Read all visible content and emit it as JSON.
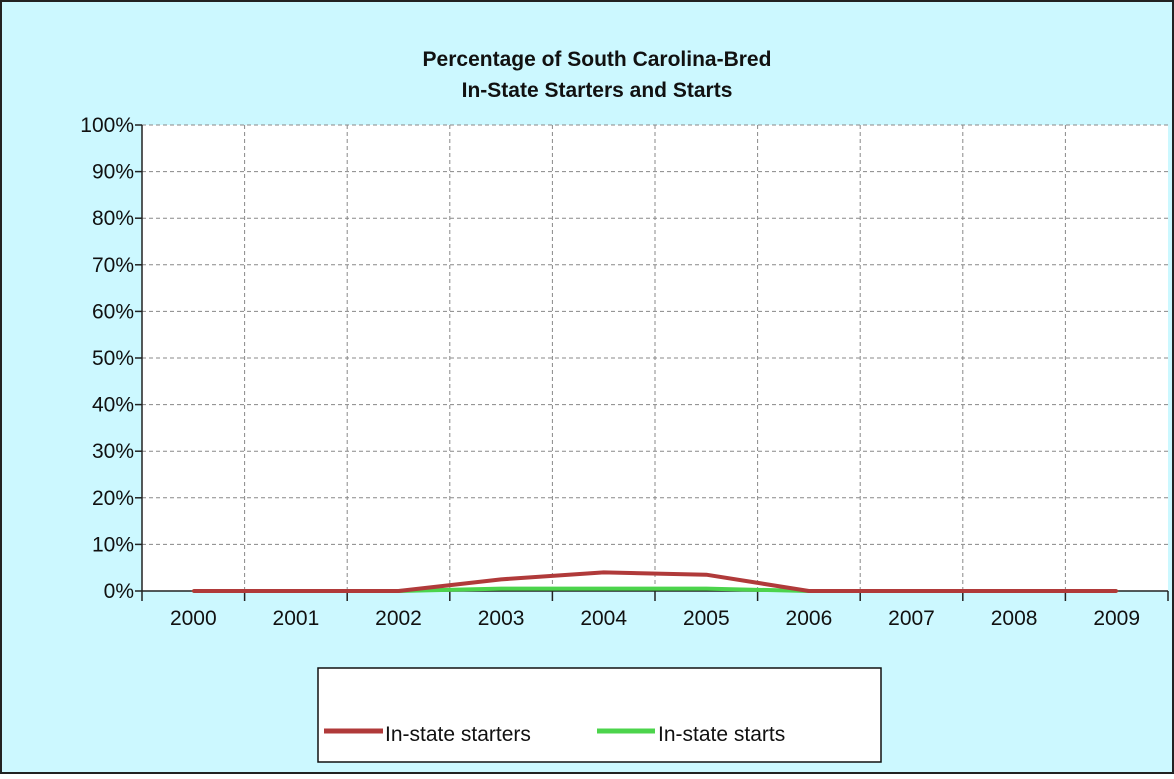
{
  "chart_data": {
    "type": "line",
    "title_lines": [
      "Percentage of South Carolina-Bred",
      "In-State Starters and Starts"
    ],
    "categories": [
      "2000",
      "2001",
      "2002",
      "2003",
      "2004",
      "2005",
      "2006",
      "2007",
      "2008",
      "2009"
    ],
    "y_ticks": [
      "0%",
      "10%",
      "20%",
      "30%",
      "40%",
      "50%",
      "60%",
      "70%",
      "80%",
      "90%",
      "100%"
    ],
    "ylim": [
      0,
      100
    ],
    "grid": true,
    "legend_position": "bottom",
    "series": [
      {
        "name": "In-state starters",
        "color": "#b03a3a",
        "values": [
          0,
          0,
          0,
          2.5,
          4,
          3.5,
          0,
          0,
          0,
          0
        ]
      },
      {
        "name": "In-state starts",
        "color": "#4cd44c",
        "values": [
          0,
          0,
          0,
          0.5,
          0.5,
          0.5,
          0,
          0,
          0,
          0
        ]
      }
    ],
    "colors": {
      "background": "#ccf8ff",
      "plot_area": "#ffffff",
      "grid": "#888888",
      "axis": "#222222",
      "text": "#111111"
    }
  }
}
